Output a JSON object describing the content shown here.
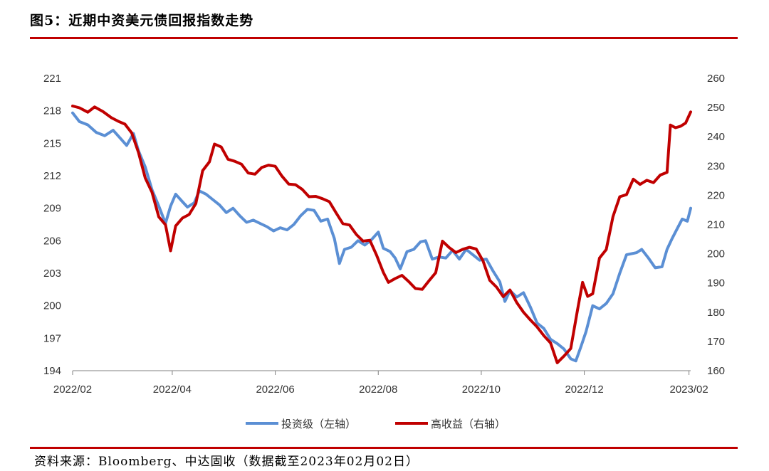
{
  "figure": {
    "title": "图5：近期中资美元债回报指数走势",
    "source": "资料来源：Bloomberg、中达固收（数据截至2023年02月02日）"
  },
  "colors": {
    "series_ig": "#5b8fd4",
    "series_hy": "#c00000",
    "axis": "#808080",
    "rule": "#c00000"
  },
  "chart_data": {
    "type": "line",
    "x_ticks": [
      "2022/02",
      "2022/04",
      "2022/06",
      "2022/08",
      "2022/10",
      "2022/12",
      "2023/02"
    ],
    "x_range": [
      "2022-02-01",
      "2023-02-02"
    ],
    "y_left": {
      "ticks": [
        194,
        197,
        200,
        203,
        206,
        209,
        212,
        215,
        218,
        221
      ],
      "range": [
        194,
        221
      ]
    },
    "y_right": {
      "ticks": [
        160,
        170,
        180,
        190,
        200,
        210,
        220,
        230,
        240,
        250,
        260
      ],
      "range": [
        160,
        260
      ]
    },
    "legend_position": "bottom",
    "grid": false,
    "series": [
      {
        "name": "投资级（左轴）",
        "axis": "left",
        "points": [
          [
            "2022-02-01",
            217.8
          ],
          [
            "2022-02-05",
            217.0
          ],
          [
            "2022-02-10",
            216.7
          ],
          [
            "2022-02-15",
            216.0
          ],
          [
            "2022-02-20",
            215.7
          ],
          [
            "2022-02-25",
            216.2
          ],
          [
            "2022-03-01",
            215.5
          ],
          [
            "2022-03-05",
            214.8
          ],
          [
            "2022-03-09",
            215.9
          ],
          [
            "2022-03-12",
            214.3
          ],
          [
            "2022-03-16",
            212.8
          ],
          [
            "2022-03-20",
            210.7
          ],
          [
            "2022-03-24",
            209.2
          ],
          [
            "2022-03-28",
            207.6
          ],
          [
            "2022-03-31",
            209.2
          ],
          [
            "2022-04-03",
            210.3
          ],
          [
            "2022-04-07",
            209.6
          ],
          [
            "2022-04-10",
            209.1
          ],
          [
            "2022-04-14",
            209.5
          ],
          [
            "2022-04-17",
            210.6
          ],
          [
            "2022-04-21",
            210.3
          ],
          [
            "2022-04-25",
            209.8
          ],
          [
            "2022-04-29",
            209.3
          ],
          [
            "2022-05-03",
            208.6
          ],
          [
            "2022-05-07",
            209.0
          ],
          [
            "2022-05-11",
            208.3
          ],
          [
            "2022-05-15",
            207.7
          ],
          [
            "2022-05-19",
            207.9
          ],
          [
            "2022-05-23",
            207.6
          ],
          [
            "2022-05-27",
            207.3
          ],
          [
            "2022-05-31",
            206.9
          ],
          [
            "2022-06-04",
            207.2
          ],
          [
            "2022-06-08",
            207.0
          ],
          [
            "2022-06-12",
            207.5
          ],
          [
            "2022-06-16",
            208.3
          ],
          [
            "2022-06-20",
            208.9
          ],
          [
            "2022-06-24",
            208.8
          ],
          [
            "2022-06-28",
            207.8
          ],
          [
            "2022-07-02",
            208.0
          ],
          [
            "2022-07-06",
            206.2
          ],
          [
            "2022-07-09",
            203.9
          ],
          [
            "2022-07-12",
            205.2
          ],
          [
            "2022-07-16",
            205.4
          ],
          [
            "2022-07-20",
            206.0
          ],
          [
            "2022-07-24",
            205.6
          ],
          [
            "2022-07-28",
            206.1
          ],
          [
            "2022-08-01",
            206.8
          ],
          [
            "2022-08-04",
            205.3
          ],
          [
            "2022-08-08",
            205.0
          ],
          [
            "2022-08-11",
            204.4
          ],
          [
            "2022-08-14",
            203.4
          ],
          [
            "2022-08-18",
            205.0
          ],
          [
            "2022-08-22",
            205.2
          ],
          [
            "2022-08-26",
            205.9
          ],
          [
            "2022-08-29",
            206.0
          ],
          [
            "2022-09-02",
            204.3
          ],
          [
            "2022-09-06",
            204.5
          ],
          [
            "2022-09-10",
            204.4
          ],
          [
            "2022-09-14",
            205.1
          ],
          [
            "2022-09-18",
            204.3
          ],
          [
            "2022-09-22",
            205.2
          ],
          [
            "2022-09-26",
            204.7
          ],
          [
            "2022-09-30",
            204.2
          ],
          [
            "2022-10-04",
            204.3
          ],
          [
            "2022-10-08",
            203.2
          ],
          [
            "2022-10-12",
            202.2
          ],
          [
            "2022-10-15",
            200.4
          ],
          [
            "2022-10-18",
            201.4
          ],
          [
            "2022-10-22",
            200.8
          ],
          [
            "2022-10-26",
            201.2
          ],
          [
            "2022-10-30",
            199.9
          ],
          [
            "2022-11-03",
            198.4
          ],
          [
            "2022-11-07",
            197.9
          ],
          [
            "2022-11-11",
            196.9
          ],
          [
            "2022-11-15",
            196.5
          ],
          [
            "2022-11-19",
            196.0
          ],
          [
            "2022-11-23",
            195.1
          ],
          [
            "2022-11-26",
            194.9
          ],
          [
            "2022-11-29",
            196.2
          ],
          [
            "2022-12-02",
            197.6
          ],
          [
            "2022-12-06",
            200.0
          ],
          [
            "2022-12-10",
            199.7
          ],
          [
            "2022-12-14",
            200.2
          ],
          [
            "2022-12-18",
            201.1
          ],
          [
            "2022-12-22",
            203.0
          ],
          [
            "2022-12-26",
            204.7
          ],
          [
            "2023-01-01",
            204.9
          ],
          [
            "2023-01-04",
            205.2
          ],
          [
            "2023-01-08",
            204.4
          ],
          [
            "2023-01-12",
            203.5
          ],
          [
            "2023-01-16",
            203.6
          ],
          [
            "2023-01-19",
            205.2
          ],
          [
            "2023-01-22",
            206.2
          ],
          [
            "2023-01-25",
            207.1
          ],
          [
            "2023-01-28",
            208.0
          ],
          [
            "2023-01-31",
            207.8
          ],
          [
            "2023-02-02",
            209.0
          ]
        ]
      },
      {
        "name": "高收益（右轴）",
        "axis": "right",
        "points": [
          [
            "2022-02-01",
            250.5
          ],
          [
            "2022-02-05",
            249.9
          ],
          [
            "2022-02-10",
            248.4
          ],
          [
            "2022-02-14",
            250.2
          ],
          [
            "2022-02-19",
            248.6
          ],
          [
            "2022-02-24",
            246.5
          ],
          [
            "2022-02-28",
            245.3
          ],
          [
            "2022-03-04",
            244.3
          ],
          [
            "2022-03-08",
            241.3
          ],
          [
            "2022-03-12",
            234.6
          ],
          [
            "2022-03-16",
            225.9
          ],
          [
            "2022-03-20",
            221.0
          ],
          [
            "2022-03-24",
            212.6
          ],
          [
            "2022-03-28",
            209.9
          ],
          [
            "2022-03-31",
            201.0
          ],
          [
            "2022-04-03",
            209.5
          ],
          [
            "2022-04-07",
            212.2
          ],
          [
            "2022-04-11",
            213.4
          ],
          [
            "2022-04-15",
            217.2
          ],
          [
            "2022-04-19",
            228.4
          ],
          [
            "2022-04-23",
            231.4
          ],
          [
            "2022-04-26",
            237.5
          ],
          [
            "2022-04-30",
            236.5
          ],
          [
            "2022-05-04",
            232.3
          ],
          [
            "2022-05-08",
            231.6
          ],
          [
            "2022-05-12",
            230.6
          ],
          [
            "2022-05-16",
            227.6
          ],
          [
            "2022-05-20",
            227.2
          ],
          [
            "2022-05-24",
            229.5
          ],
          [
            "2022-05-28",
            230.3
          ],
          [
            "2022-06-01",
            229.9
          ],
          [
            "2022-06-05",
            226.5
          ],
          [
            "2022-06-09",
            223.8
          ],
          [
            "2022-06-13",
            223.6
          ],
          [
            "2022-06-17",
            222.0
          ],
          [
            "2022-06-21",
            219.5
          ],
          [
            "2022-06-25",
            219.6
          ],
          [
            "2022-06-29",
            218.8
          ],
          [
            "2022-07-03",
            217.8
          ],
          [
            "2022-07-07",
            214.0
          ],
          [
            "2022-07-11",
            210.3
          ],
          [
            "2022-07-15",
            209.8
          ],
          [
            "2022-07-19",
            206.6
          ],
          [
            "2022-07-23",
            204.3
          ],
          [
            "2022-07-27",
            204.6
          ],
          [
            "2022-07-31",
            199.5
          ],
          [
            "2022-08-04",
            193.6
          ],
          [
            "2022-08-07",
            190.2
          ],
          [
            "2022-08-11",
            191.5
          ],
          [
            "2022-08-15",
            192.6
          ],
          [
            "2022-08-19",
            190.5
          ],
          [
            "2022-08-23",
            188.1
          ],
          [
            "2022-08-27",
            187.8
          ],
          [
            "2022-08-31",
            190.7
          ],
          [
            "2022-09-04",
            193.5
          ],
          [
            "2022-09-08",
            204.3
          ],
          [
            "2022-09-12",
            202.1
          ],
          [
            "2022-09-16",
            200.4
          ],
          [
            "2022-09-20",
            201.5
          ],
          [
            "2022-09-24",
            202.2
          ],
          [
            "2022-09-28",
            201.6
          ],
          [
            "2022-10-02",
            197.6
          ],
          [
            "2022-10-06",
            190.9
          ],
          [
            "2022-10-10",
            188.6
          ],
          [
            "2022-10-14",
            185.3
          ],
          [
            "2022-10-18",
            187.6
          ],
          [
            "2022-10-22",
            183.3
          ],
          [
            "2022-10-26",
            180.0
          ],
          [
            "2022-10-30",
            177.4
          ],
          [
            "2022-11-03",
            175.0
          ],
          [
            "2022-11-07",
            172.0
          ],
          [
            "2022-11-11",
            169.5
          ],
          [
            "2022-11-15",
            162.7
          ],
          [
            "2022-11-19",
            165.0
          ],
          [
            "2022-11-23",
            167.6
          ],
          [
            "2022-11-27",
            180.8
          ],
          [
            "2022-11-30",
            190.2
          ],
          [
            "2022-12-03",
            185.4
          ],
          [
            "2022-12-06",
            186.3
          ],
          [
            "2022-12-10",
            198.5
          ],
          [
            "2022-12-14",
            201.4
          ],
          [
            "2022-12-18",
            212.7
          ],
          [
            "2022-12-22",
            219.5
          ],
          [
            "2022-12-26",
            220.2
          ],
          [
            "2022-12-30",
            225.5
          ],
          [
            "2023-01-03",
            223.7
          ],
          [
            "2023-01-07",
            225.1
          ],
          [
            "2023-01-11",
            224.3
          ],
          [
            "2023-01-15",
            226.9
          ],
          [
            "2023-01-19",
            227.8
          ],
          [
            "2023-01-21",
            244.0
          ],
          [
            "2023-01-24",
            243.1
          ],
          [
            "2023-01-27",
            243.6
          ],
          [
            "2023-01-30",
            244.7
          ],
          [
            "2023-02-02",
            248.5
          ]
        ]
      }
    ]
  }
}
